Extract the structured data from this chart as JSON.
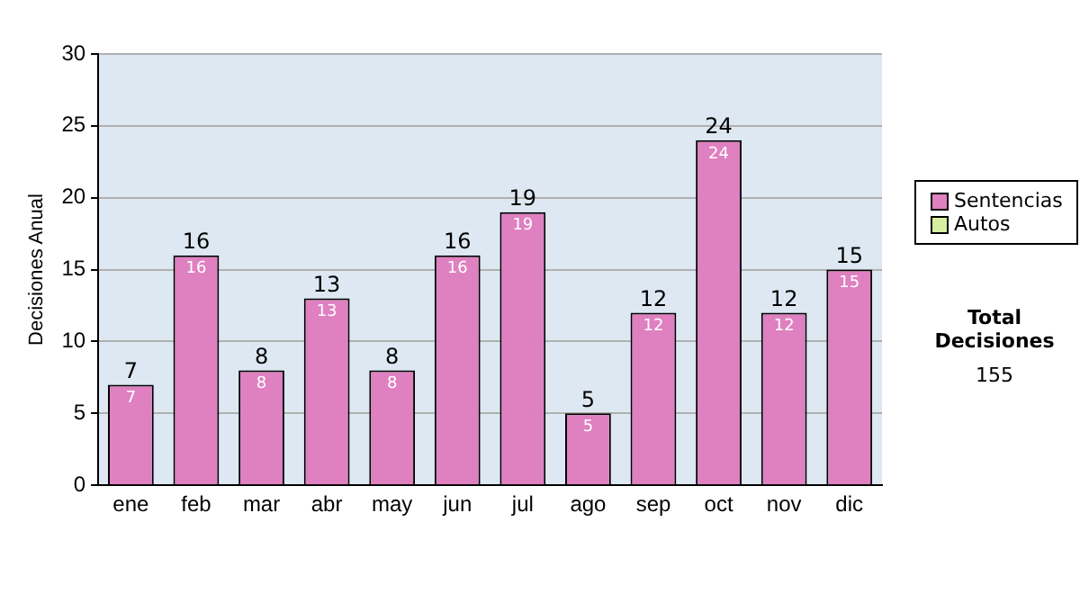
{
  "chart_data": {
    "type": "bar",
    "ylabel": "Decisiones Anual",
    "categories": [
      "ene",
      "feb",
      "mar",
      "abr",
      "may",
      "jun",
      "jul",
      "ago",
      "sep",
      "oct",
      "nov",
      "dic"
    ],
    "series": [
      {
        "name": "Sentencias",
        "color": "#df80c0",
        "values": [
          7,
          16,
          8,
          13,
          8,
          16,
          19,
          5,
          12,
          24,
          12,
          15
        ]
      },
      {
        "name": "Autos",
        "color": "#d6f0a0",
        "values": [
          null,
          null,
          null,
          null,
          null,
          null,
          null,
          null,
          null,
          null,
          null,
          null
        ]
      }
    ],
    "stacked": true,
    "data_labels": true,
    "totals": [
      "7",
      "16",
      "8",
      "13",
      "8",
      "16",
      "19",
      "5",
      "12",
      "24",
      "12",
      "15"
    ],
    "ylim": [
      0,
      30
    ],
    "yticks": [
      0,
      5,
      10,
      15,
      20,
      25,
      30
    ],
    "grid": "y",
    "legend": "right",
    "annotations": [
      "Total Decisiones",
      "155"
    ]
  }
}
